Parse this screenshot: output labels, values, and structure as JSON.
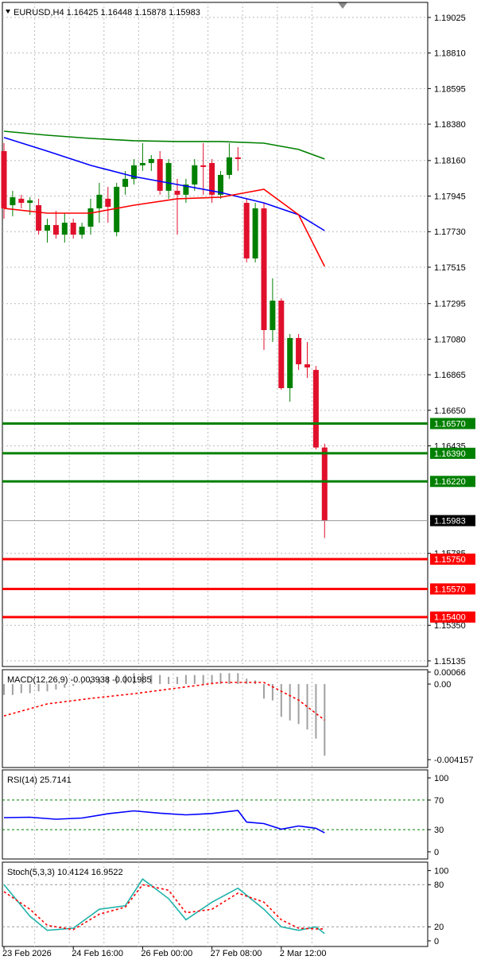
{
  "chart_data": [
    {
      "type": "candlestick",
      "title": "EURUSD,H4  1.16425 1.16448 1.15878 1.15983",
      "categories": [
        "23 Feb 2026",
        null,
        null,
        null,
        null,
        null,
        null,
        null,
        "24 Feb 16:00",
        null,
        null,
        null,
        null,
        null,
        null,
        null,
        "26 Feb 00:00",
        null,
        null,
        null,
        null,
        null,
        null,
        null,
        "27 Feb 08:00",
        null,
        null,
        null,
        null,
        null,
        null,
        null,
        "2 Mar 12:00",
        null,
        null,
        null,
        null,
        null
      ],
      "open": [
        1.18217,
        1.1789,
        1.17929,
        1.17904,
        1.1789,
        1.17736,
        1.1777,
        1.17712,
        1.17784,
        1.17712,
        1.1776,
        1.17871,
        1.17929,
        1.17727,
        1.18001,
        1.18049,
        1.18131,
        1.18145,
        1.18169,
        1.17977,
        1.17977,
        1.17953,
        1.18015,
        1.18131,
        1.18145,
        1.17953,
        1.18073,
        1.18179,
        1.17904,
        1.17568,
        1.17871,
        1.17135,
        1.17313,
        1.16784,
        1.17087,
        1.16928,
        1.16894,
        1.16425
      ],
      "high": [
        1.18265,
        1.17977,
        1.17953,
        1.17938,
        1.17929,
        1.17808,
        1.17856,
        1.17842,
        1.17808,
        1.17784,
        1.17929,
        1.18025,
        1.18001,
        1.18025,
        1.18097,
        1.18169,
        1.18265,
        1.18193,
        1.18217,
        1.18169,
        1.18049,
        1.18049,
        1.18169,
        1.18265,
        1.18169,
        1.18097,
        1.18265,
        1.18241,
        1.17929,
        1.17904,
        1.17904,
        1.17448,
        1.17327,
        1.17111,
        1.17111,
        1.17063,
        1.16918,
        1.16448
      ],
      "low": [
        1.17808,
        1.17823,
        1.17871,
        1.17832,
        1.17712,
        1.17664,
        1.17688,
        1.17664,
        1.17688,
        1.17688,
        1.17712,
        1.17784,
        1.17784,
        1.17702,
        1.17953,
        1.18015,
        1.18097,
        1.18097,
        1.17953,
        1.17929,
        1.17712,
        1.17904,
        1.17977,
        1.17953,
        1.17904,
        1.17929,
        1.18049,
        1.18097,
        1.17544,
        1.17544,
        1.17015,
        1.17063,
        1.16774,
        1.16702,
        1.16894,
        1.16846,
        1.16413,
        1.15878
      ],
      "close": [
        1.17871,
        1.17938,
        1.17904,
        1.17919,
        1.17736,
        1.1777,
        1.17712,
        1.17784,
        1.17712,
        1.1776,
        1.17871,
        1.17953,
        1.1788,
        1.18001,
        1.18049,
        1.18131,
        1.18145,
        1.18169,
        1.17977,
        1.18145,
        1.17953,
        1.18015,
        1.18131,
        1.18121,
        1.17953,
        1.18073,
        1.18179,
        1.18169,
        1.17568,
        1.17871,
        1.17135,
        1.17313,
        1.16784,
        1.17087,
        1.16928,
        1.16909,
        1.16425,
        1.15983
      ],
      "up_color": "#008000",
      "down_color": "#e0102c",
      "series": [
        {
          "color": "#008000",
          "x": [
            0,
            5,
            10,
            15,
            20,
            25,
            30,
            34,
            37
          ],
          "values": [
            1.18337,
            1.18313,
            1.18294,
            1.1828,
            1.18275,
            1.18275,
            1.18265,
            1.18227,
            1.18169
          ]
        },
        {
          "color": "#0000ff",
          "x": [
            0,
            5,
            10,
            15,
            20,
            25,
            30,
            34,
            37
          ],
          "values": [
            1.18299,
            1.18217,
            1.18131,
            1.18063,
            1.18015,
            1.17967,
            1.17904,
            1.17832,
            1.17736
          ]
        },
        {
          "color": "#ff0000",
          "x": [
            0,
            5,
            10,
            15,
            20,
            25,
            30,
            34,
            37
          ],
          "values": [
            1.17871,
            1.17842,
            1.17842,
            1.1789,
            1.17929,
            1.17938,
            1.17986,
            1.17832,
            1.1752
          ]
        }
      ],
      "levels": [
        {
          "value": 1.1657,
          "label": "1.16570",
          "color": "#008000"
        },
        {
          "value": 1.1639,
          "label": "1.16390",
          "color": "#008000"
        },
        {
          "value": 1.1622,
          "label": "1.16220",
          "color": "#008000"
        },
        {
          "value": 1.1575,
          "label": "1.15750",
          "color": "#ff0000"
        },
        {
          "value": 1.1557,
          "label": "1.15570",
          "color": "#ff0000"
        },
        {
          "value": 1.154,
          "label": "1.15400",
          "color": "#ff0000"
        }
      ],
      "current_price": 1.15983,
      "ylim": [
        1.15101,
        1.19116
      ],
      "yticks": [
        1.19025,
        {
          "value": 1.1881,
          "label": "1.18810"
        },
        1.18595,
        {
          "value": 1.1838,
          "label": "1.18380"
        },
        {
          "value": 1.1816,
          "label": "1.18160"
        },
        1.17945,
        {
          "value": 1.1773,
          "label": "1.17730"
        },
        1.17515,
        1.17295,
        {
          "value": 1.1708,
          "label": "1.17080"
        },
        1.16865,
        {
          "value": 1.1665,
          "label": "1.16650"
        },
        1.16435,
        1.15785,
        {
          "value": 1.1535,
          "label": "1.15350"
        },
        1.15135
      ],
      "grid": true
    },
    {
      "type": "macd",
      "title": "MACD(12,26,9) -0.003938 -0.001985",
      "values": [
        -0.0006,
        -0.0006,
        -0.0005,
        -0.0005,
        -0.0004,
        -0.0004,
        -0.0003,
        -0.0002,
        -0.0001,
        0.0001,
        0.0002,
        0.0003,
        0.0004,
        0.0005,
        0.0005,
        0.0006,
        0.0006,
        0.0005,
        0.0005,
        0.0004,
        0.0004,
        0.0005,
        0.0005,
        0.0005,
        0.0005,
        0.0006,
        0.0006,
        0.0006,
        0.0003,
        0.0002,
        -0.0008,
        -0.0009,
        -0.0018,
        -0.002,
        -0.0022,
        -0.0025,
        -0.003,
        -0.003938
      ],
      "color": "#a0a0a0",
      "series": [
        {
          "color": "#ff0000",
          "dash": true,
          "x": [
            0,
            5,
            10,
            15,
            20,
            25,
            30,
            34,
            37
          ],
          "values": [
            -0.00175,
            -0.00109,
            -0.00079,
            -0.00053,
            -0.00022,
            9e-05,
            9e-05,
            -0.00088,
            -0.001985
          ]
        }
      ],
      "ylim": [
        -0.00459,
        0.00079
      ],
      "yticks": [
        0.00066,
        {
          "value": 0,
          "label": "0.00"
        },
        -0.004157
      ],
      "grid": true
    },
    {
      "type": "line",
      "title": "RSI(14) 25.7141",
      "series": [
        {
          "color": "#0000ff",
          "x": [
            0,
            3,
            6,
            9,
            12,
            15,
            18,
            21,
            24,
            27,
            28,
            30,
            32,
            34,
            36,
            37
          ],
          "values": [
            46.2,
            46.8,
            44.1,
            45.7,
            51.5,
            55.4,
            52.3,
            50.0,
            51.8,
            55.9,
            40.2,
            38.2,
            30.6,
            35.0,
            31.8,
            25.7141
          ]
        }
      ],
      "levels": [
        70,
        30
      ],
      "level_color": "#008000",
      "ylim": [
        -9.7,
        110.8
      ],
      "yticks": [
        100,
        70,
        30,
        0
      ],
      "grid": true
    },
    {
      "type": "line",
      "title": "Stoch(5,3,3) 10.4124 16.9522",
      "series": [
        {
          "color": "#20b2aa",
          "x": [
            0,
            3,
            5,
            8,
            11,
            14,
            16,
            19,
            21,
            24,
            27,
            30,
            32,
            34,
            36,
            37
          ],
          "values": [
            80,
            35,
            15,
            18,
            45,
            50,
            88,
            60,
            30,
            55,
            75,
            45,
            20,
            15,
            20,
            10.4124
          ]
        },
        {
          "color": "#ff0000",
          "dash": true,
          "x": [
            0,
            3,
            5,
            8,
            11,
            14,
            16,
            19,
            21,
            24,
            27,
            30,
            32,
            34,
            36,
            37
          ],
          "values": [
            70,
            45,
            22,
            16,
            38,
            48,
            80,
            72,
            40,
            45,
            68,
            55,
            30,
            18,
            17,
            16.9522
          ]
        }
      ],
      "levels": [
        80,
        20
      ],
      "level_color": "#999999",
      "ylim": [
        -8,
        112
      ],
      "yticks": [
        100,
        80,
        20,
        0
      ],
      "grid": true
    }
  ]
}
